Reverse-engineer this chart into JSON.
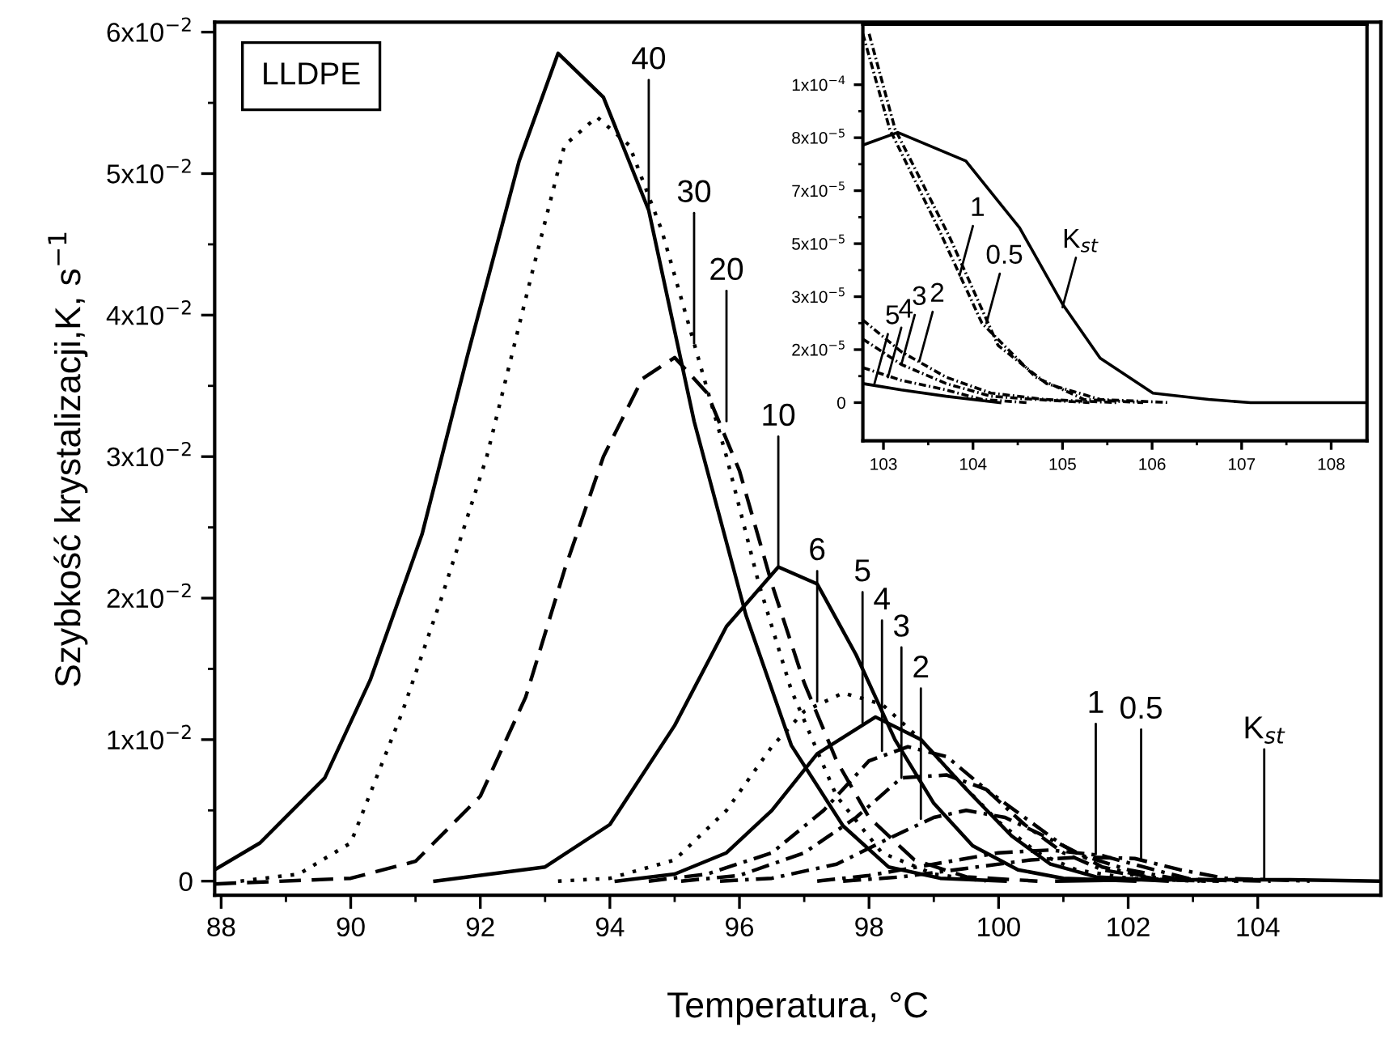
{
  "chart_data": [
    {
      "type": "line",
      "xlabel": "Temperatura, °C",
      "ylabel": "Szybkość krystalizacji,K, s$^{−1}$",
      "xlim": [
        87.9,
        105.9
      ],
      "xticks": [
        88,
        90,
        92,
        94,
        96,
        98,
        100,
        102,
        104
      ],
      "ylim": [
        -0.001,
        0.0607
      ],
      "yticks": [
        0,
        {
          "value": 0.01,
          "label": "1x10$^{−2}$"
        },
        {
          "value": 0.02,
          "label": "2x10$^{−2}$"
        },
        {
          "value": 0.03,
          "label": "3x10$^{−2}$"
        },
        {
          "value": 0.04,
          "label": "4x10$^{−2}$"
        },
        {
          "value": 0.05,
          "label": "5x10$^{−2}$"
        },
        {
          "value": 0.06,
          "label": "6x10$^{−2}$"
        }
      ],
      "grid": false,
      "legend": false,
      "series": [
        {
          "color": "#000000",
          "line_style": "solid",
          "x": [
            87.9,
            88.6,
            89.6,
            90.3,
            91.1,
            91.8,
            92.6,
            93.2,
            93.9,
            94.6,
            95.3,
            96.1,
            96.8,
            97.6,
            98.3,
            99.1,
            100.1
          ],
          "values": [
            0.0008,
            0.0027,
            0.0073,
            0.0142,
            0.0245,
            0.0371,
            0.0509,
            0.0585,
            0.0554,
            0.0474,
            0.0325,
            0.0188,
            0.0096,
            0.0039,
            0.001,
            0.0002,
            0
          ]
        },
        {
          "color": "#000000",
          "line_style": "dotted",
          "x": [
            88.3,
            89.2,
            90,
            90.8,
            91.4,
            92.1,
            92.8,
            93.3,
            93.8,
            94.3,
            94.8,
            95.3,
            95.8,
            96.3,
            96.8,
            97.5,
            98.2,
            99,
            99.8
          ],
          "values": [
            0,
            0.0005,
            0.0027,
            0.012,
            0.02,
            0.03,
            0.043,
            0.052,
            0.054,
            0.052,
            0.046,
            0.038,
            0.03,
            0.021,
            0.0135,
            0.006,
            0.002,
            0.0005,
            0
          ]
        },
        {
          "color": "#000000",
          "line_style": "dashed",
          "x": [
            87.9,
            90,
            91,
            92,
            92.7,
            93.3,
            93.9,
            94.5,
            95,
            95.5,
            96,
            96.5,
            97,
            97.5,
            98,
            98.7,
            99.5,
            100.6
          ],
          "values": [
            -0.0002,
            0.0002,
            0.0014,
            0.006,
            0.013,
            0.022,
            0.03,
            0.0355,
            0.037,
            0.0345,
            0.029,
            0.021,
            0.014,
            0.0085,
            0.0045,
            0.0015,
            0.0003,
            0
          ]
        },
        {
          "color": "#000000",
          "line_style": "solid",
          "x": [
            91.3,
            93,
            94,
            95,
            95.8,
            96.6,
            97.2,
            97.8,
            98.4,
            99,
            99.6,
            100.3,
            101,
            102.1
          ],
          "values": [
            0,
            0.001,
            0.004,
            0.011,
            0.018,
            0.0222,
            0.021,
            0.016,
            0.01,
            0.0055,
            0.0025,
            0.0008,
            0.0002,
            0
          ]
        },
        {
          "color": "#000000",
          "line_style": "dotted",
          "x": [
            93.2,
            94,
            95,
            95.8,
            96.5,
            97,
            97.6,
            98.2,
            98.8,
            99.4,
            100,
            100.6,
            101.2,
            102,
            103.1
          ],
          "values": [
            0,
            0.0002,
            0.0015,
            0.005,
            0.0095,
            0.012,
            0.0133,
            0.0125,
            0.01,
            0.007,
            0.0042,
            0.002,
            0.0008,
            0.0002,
            0
          ]
        },
        {
          "color": "#000000",
          "line_style": "solid",
          "x": [
            94.1,
            95,
            95.8,
            96.5,
            97.2,
            98.1,
            98.8,
            99.5,
            100.2,
            100.8,
            101.5,
            102.6
          ],
          "values": [
            0,
            0.0005,
            0.002,
            0.005,
            0.009,
            0.0116,
            0.01,
            0.0065,
            0.0032,
            0.0012,
            0.0003,
            0
          ]
        },
        {
          "color": "#000000",
          "line_style": "dashdot",
          "x": [
            94.6,
            95.5,
            96.5,
            97.3,
            98,
            98.6,
            99.2,
            99.8,
            100.4,
            101,
            101.6,
            102.5,
            103.4
          ],
          "values": [
            0,
            0.0005,
            0.002,
            0.005,
            0.0085,
            0.0095,
            0.0088,
            0.0065,
            0.004,
            0.002,
            0.0008,
            0.0001,
            0
          ]
        },
        {
          "color": "#000000",
          "line_style": "dashdot",
          "x": [
            95.1,
            96,
            97,
            97.8,
            98.5,
            99.2,
            99.8,
            100.4,
            101,
            101.6,
            102.3,
            103.2
          ],
          "values": [
            0,
            0.0004,
            0.002,
            0.0045,
            0.0073,
            0.0075,
            0.0065,
            0.0045,
            0.0025,
            0.001,
            0.0003,
            0
          ]
        },
        {
          "color": "#000000",
          "line_style": "dashdot",
          "x": [
            95.7,
            96.5,
            97.5,
            98.3,
            99,
            99.5,
            100.1,
            100.7,
            101.3,
            102,
            102.7,
            103.7
          ],
          "values": [
            0,
            0.0002,
            0.0012,
            0.003,
            0.0045,
            0.005,
            0.0045,
            0.0032,
            0.0018,
            0.0008,
            0.0002,
            0
          ]
        },
        {
          "color": "#000000",
          "line_style": "dashdot",
          "x": [
            97.2,
            98,
            99,
            100,
            100.8,
            101.6,
            102.4,
            103,
            104.2
          ],
          "values": [
            0,
            0.0004,
            0.0012,
            0.002,
            0.0022,
            0.0018,
            0.0008,
            0.0001,
            0
          ]
        },
        {
          "color": "#000000",
          "line_style": "dashdot",
          "x": [
            97.6,
            98.5,
            99.5,
            100.5,
            101.3,
            102.1,
            102.8,
            103.5,
            104.8
          ],
          "values": [
            0,
            0.0003,
            0.0009,
            0.0015,
            0.0017,
            0.0016,
            0.0008,
            0.0002,
            0
          ]
        },
        {
          "color": "#000000",
          "line_style": "solid",
          "x": [
            100.9,
            102.2,
            103.2,
            104.5,
            105.9
          ],
          "values": [
            0,
            0.0001,
            0.0001,
            0.0001,
            0
          ]
        }
      ],
      "annotations": [
        "LLDPE",
        {
          "text": "40",
          "x": 94.6,
          "y": 0.0474
        },
        {
          "text": "30",
          "x": 95.3,
          "y": 0.038
        },
        {
          "text": "20",
          "x": 95.8,
          "y": 0.0325
        },
        {
          "text": "10",
          "x": 96.6,
          "y": 0.0222
        },
        {
          "text": "6",
          "x": 97.2,
          "y": 0.0127
        },
        {
          "text": "5",
          "x": 97.9,
          "y": 0.0112
        },
        {
          "text": "4",
          "x": 98.2,
          "y": 0.0092
        },
        {
          "text": "3",
          "x": 98.5,
          "y": 0.0073
        },
        {
          "text": "2",
          "x": 98.8,
          "y": 0.0044
        },
        {
          "text": "1",
          "x": 101.5,
          "y": 0.0019
        },
        {
          "text": "0.5",
          "x": 102.2,
          "y": 0.0015
        },
        {
          "text": "K$_{st}$",
          "x": 104.1,
          "y": 0.0001
        }
      ]
    },
    {
      "type": "line",
      "xlim": [
        102.77,
        108.4
      ],
      "xticks": [
        103,
        104,
        105,
        106,
        107,
        108
      ],
      "ylim": [
        -1.2e-05,
        0.000119
      ],
      "yticks": [
        {
          "value": 0,
          "label": "0"
        },
        {
          "value": 1.667e-05,
          "label": "2x10$^{−5}$"
        },
        {
          "value": 3.333e-05,
          "label": "3x10$^{−5}$"
        },
        {
          "value": 5e-05,
          "label": "5x10$^{−5}$"
        },
        {
          "value": 6.667e-05,
          "label": "7x10$^{−5}$"
        },
        {
          "value": 8.333e-05,
          "label": "8x10$^{−5}$"
        },
        {
          "value": 0.0001,
          "label": "1x10$^{−4}$"
        }
      ],
      "grid": false,
      "legend": false,
      "series": [
        {
          "color": "#000000",
          "line_style": "solid",
          "x": [
            102.77,
            103.16,
            103.92,
            104.52,
            105.0,
            105.42,
            106.01,
            106.63,
            107.1,
            108.4
          ],
          "values": [
            8.1e-05,
            8.5e-05,
            7.6e-05,
            5.5e-05,
            3.1e-05,
            1.4e-05,
            3e-06,
            1e-06,
            0,
            0
          ]
        },
        {
          "color": "#000000",
          "line_style": "dashdot",
          "x": [
            102.77,
            103.07,
            103.61,
            104.1,
            104.7,
            105.24,
            105.9
          ],
          "values": [
            0.000116,
            8.6e-05,
            5.5e-05,
            2.5e-05,
            8e-06,
            1e-06,
            0
          ]
        },
        {
          "color": "#000000",
          "line_style": "dashdot",
          "x": [
            102.84,
            103.13,
            103.74,
            104.28,
            104.82,
            105.42,
            106.2
          ],
          "values": [
            0.000116,
            8.6e-05,
            5.2e-05,
            1.8e-05,
            6e-06,
            1e-06,
            0
          ]
        },
        {
          "color": "#000000",
          "line_style": "dashdot",
          "x": [
            102.77,
            103.2,
            103.7,
            104.2,
            104.8,
            105.6
          ],
          "values": [
            2.6e-05,
            1.6e-05,
            8e-06,
            3e-06,
            1e-06,
            0
          ]
        },
        {
          "color": "#000000",
          "line_style": "dashdot",
          "x": [
            102.77,
            103.2,
            103.7,
            104.2,
            104.7,
            105.3
          ],
          "values": [
            2e-05,
            1.2e-05,
            6e-06,
            2e-06,
            1e-06,
            0
          ]
        },
        {
          "color": "#000000",
          "line_style": "dashdot",
          "x": [
            102.77,
            103.2,
            103.7,
            104.1,
            104.6
          ],
          "values": [
            1.1e-05,
            7e-06,
            4e-06,
            1e-06,
            0
          ]
        },
        {
          "color": "#000000",
          "line_style": "solid",
          "x": [
            102.77,
            103.2,
            103.7,
            104.3
          ],
          "values": [
            6e-06,
            4e-06,
            2e-06,
            0
          ]
        }
      ],
      "annotations": [
        {
          "text": "1",
          "x": 103.85,
          "y": 4e-05
        },
        {
          "text": "0.5",
          "x": 104.15,
          "y": 2.5e-05
        },
        {
          "text": "K$_{st}$",
          "x": 105.0,
          "y": 3e-05
        },
        {
          "text": "5",
          "x": 102.9,
          "y": 6e-06
        },
        {
          "text": "4",
          "x": 103.05,
          "y": 8e-06
        },
        {
          "text": "3",
          "x": 103.2,
          "y": 1.2e-05
        },
        {
          "text": "2",
          "x": 103.4,
          "y": 1.3e-05
        }
      ]
    }
  ]
}
